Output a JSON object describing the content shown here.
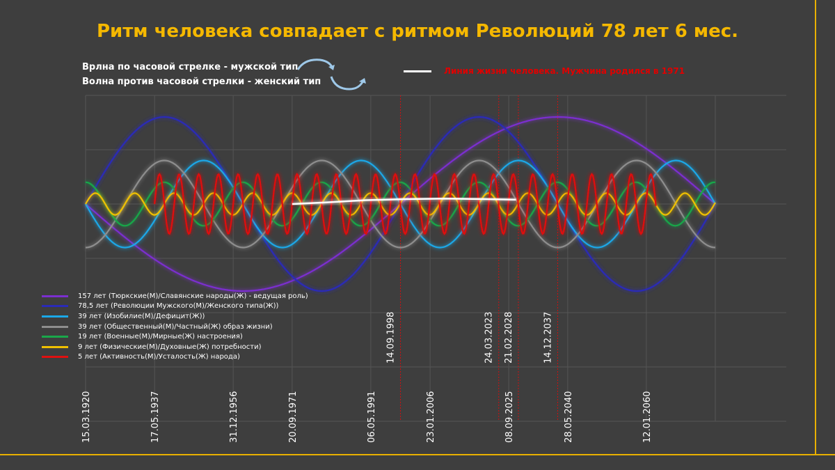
{
  "title": "Ритм человека совпадает с ритмом Революций 78 лет 6 мес.",
  "notes": {
    "clockwise": "Врлна по часовой стрелке - мужской тип",
    "counterclockwise": "Волна против часовой  стрелки - женский тип"
  },
  "life_line": {
    "label": "Линия жизни человека. Мужчина родился в 1971",
    "color": "#ffffff",
    "label_color": "#e00000"
  },
  "icons": {
    "clockwise": "clockwise-arrow-icon",
    "counterclockwise": "counterclockwise-arrow-icon"
  },
  "chart_data": {
    "type": "line",
    "x_unit": "year",
    "xlim": [
      1920.2,
      2077.2
    ],
    "x_ticks": [
      {
        "label": "15.03.1920",
        "year": 1920.2
      },
      {
        "label": "17.05.1937",
        "year": 1937.4
      },
      {
        "label": "31.12.1956",
        "year": 1957.0
      },
      {
        "label": "20.09.1971",
        "year": 1971.7
      },
      {
        "label": "06.05.1991",
        "year": 1991.3
      },
      {
        "label": "23.01.2006",
        "year": 2006.1
      },
      {
        "label": "08.09.2025",
        "year": 2025.7
      },
      {
        "label": "28.05.2040",
        "year": 2040.4
      },
      {
        "label": "12.01.2060",
        "year": 2060.0
      }
    ],
    "markers": [
      {
        "label": "14.09.1998",
        "year": 1998.7,
        "color": "#d01010"
      },
      {
        "label": "24.03.2023",
        "year": 2023.2,
        "color": "#d01010"
      },
      {
        "label": "21.02.2028",
        "year": 2028.1,
        "color": "#d01010"
      },
      {
        "label": "14.12.2037",
        "year": 2037.9,
        "color": "#d01010"
      }
    ],
    "ylim": [
      -1.6,
      1.6
    ],
    "grid": true,
    "legend_position": "bottom-left",
    "series": [
      {
        "name": "157 лет (Тюркские(М)/Славянские народы(Ж) - ведущая роль)",
        "color": "#7b2fd0",
        "period": 157,
        "amplitude": 1.6,
        "phase_start": 1920.2,
        "sign": -1
      },
      {
        "name": "78,5 лет (Революции Мужского(М)/Женского типа(Ж))",
        "color": "#2a2ab8",
        "period": 78.5,
        "amplitude": 1.6,
        "phase_start": 1920.2,
        "sign": 1
      },
      {
        "name": "39 лет (Изобилие(М)/Дефицит(Ж))",
        "color": "#1aa8e8",
        "period": 39.25,
        "amplitude": 0.8,
        "phase_start": 1920.2,
        "sign": -1
      },
      {
        "name": "39 лет (Общественный(М)/Частный(Ж) образ жизни)",
        "color": "#8e8e8e",
        "period": 39.25,
        "amplitude": 0.8,
        "phase_start": 1910.4,
        "sign": -1
      },
      {
        "name": "19 лет (Военные(М)/Мирные(Ж) настроения)",
        "color": "#19a84a",
        "period": 19.6,
        "amplitude": 0.4,
        "phase_start": 1915.3,
        "sign": 1
      },
      {
        "name": "9 лет (Физические(М)/Духовные(Ж) потребности)",
        "color": "#f0c000",
        "period": 9.8,
        "amplitude": 0.2,
        "phase_start": 1920.2,
        "sign": 1
      },
      {
        "name": "5 лет (Активность(М)/Усталость(Ж) народа)",
        "color": "#e01010",
        "period": 4.9,
        "amplitude": 0.55,
        "phase_start": 1937.4,
        "sign": 1
      }
    ],
    "life_line_data": {
      "x": [
        1971.7,
        1980,
        1990,
        2000,
        2010,
        2020,
        2027.5
      ],
      "y": [
        0.0,
        0.03,
        0.07,
        0.09,
        0.1,
        0.09,
        0.08
      ]
    }
  }
}
